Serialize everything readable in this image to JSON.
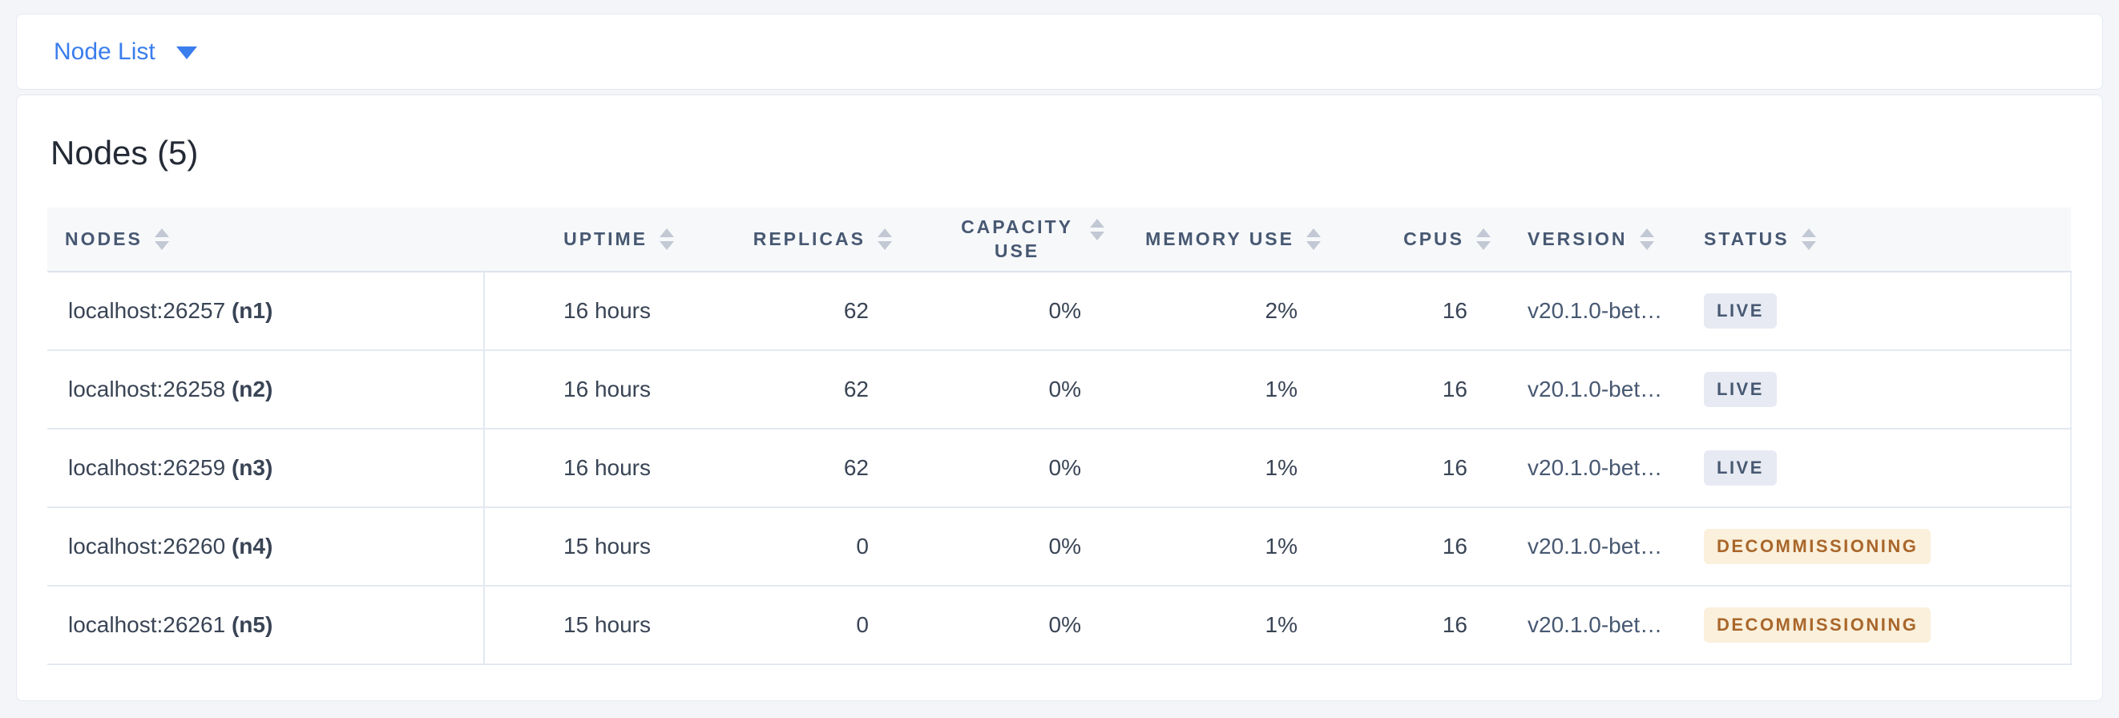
{
  "colors": {
    "page_background": "#f3f5f9",
    "accent_blue": "#3a7ded",
    "header_text": "#475872",
    "body_text": "#394455",
    "badge_live_bg": "#e7eaf2",
    "badge_live_text": "#475872",
    "badge_decommissioning_bg": "#faf0dc",
    "badge_decommissioning_text": "#a9662a"
  },
  "nav": {
    "dropdown_label": "Node List",
    "dropdown_icon": "chevron-down-icon"
  },
  "main": {
    "title": "Nodes (5)",
    "table": {
      "columns": [
        {
          "key": "nodes",
          "label": "NODES",
          "align": "left",
          "sortable": true,
          "two_line": false
        },
        {
          "key": "uptime",
          "label": "UPTIME",
          "align": "right",
          "sortable": true,
          "two_line": false
        },
        {
          "key": "replicas",
          "label": "REPLICAS",
          "align": "right",
          "sortable": true,
          "two_line": false
        },
        {
          "key": "capacity_use",
          "label": "CAPACITY USE",
          "align": "right",
          "sortable": true,
          "two_line": true
        },
        {
          "key": "memory_use",
          "label": "MEMORY USE",
          "align": "right",
          "sortable": true,
          "two_line": false
        },
        {
          "key": "cpus",
          "label": "CPUS",
          "align": "right",
          "sortable": true,
          "two_line": false
        },
        {
          "key": "version",
          "label": "VERSION",
          "align": "left",
          "sortable": true,
          "two_line": false
        },
        {
          "key": "status",
          "label": "STATUS",
          "align": "left",
          "sortable": true,
          "two_line": false
        }
      ],
      "rows": [
        {
          "address": "localhost:26257",
          "node_id": "(n1)",
          "uptime": "16 hours",
          "replicas": "62",
          "capacity_use": "0%",
          "memory_use": "2%",
          "cpus": "16",
          "version": "v20.1.0-bet…",
          "status_label": "LIVE",
          "status_kind": "live"
        },
        {
          "address": "localhost:26258",
          "node_id": "(n2)",
          "uptime": "16 hours",
          "replicas": "62",
          "capacity_use": "0%",
          "memory_use": "1%",
          "cpus": "16",
          "version": "v20.1.0-bet…",
          "status_label": "LIVE",
          "status_kind": "live"
        },
        {
          "address": "localhost:26259",
          "node_id": "(n3)",
          "uptime": "16 hours",
          "replicas": "62",
          "capacity_use": "0%",
          "memory_use": "1%",
          "cpus": "16",
          "version": "v20.1.0-bet…",
          "status_label": "LIVE",
          "status_kind": "live"
        },
        {
          "address": "localhost:26260",
          "node_id": "(n4)",
          "uptime": "15 hours",
          "replicas": "0",
          "capacity_use": "0%",
          "memory_use": "1%",
          "cpus": "16",
          "version": "v20.1.0-bet…",
          "status_label": "DECOMMISSIONING",
          "status_kind": "decommissioning"
        },
        {
          "address": "localhost:26261",
          "node_id": "(n5)",
          "uptime": "15 hours",
          "replicas": "0",
          "capacity_use": "0%",
          "memory_use": "1%",
          "cpus": "16",
          "version": "v20.1.0-bet…",
          "status_label": "DECOMMISSIONING",
          "status_kind": "decommissioning"
        }
      ]
    }
  }
}
